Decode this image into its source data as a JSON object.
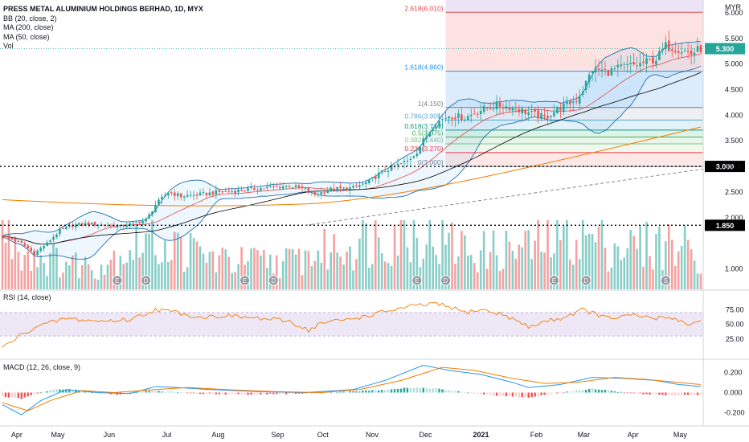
{
  "chart_data": {
    "type": "candlestick",
    "title": "PRESS METAL ALUMINIUM HOLDINGS BERHAD, 1D, MYX",
    "currency": "MYR",
    "colors": {
      "up": "#26a69a",
      "down": "#ef5350",
      "bb": "#1e6fae",
      "ma200": "#f57c00",
      "ma50": "#000000",
      "rsi": "#f57c00",
      "macd": "#2196f3",
      "signal": "#f57c00"
    },
    "indicators": [
      "BB (20, close, 2)",
      "MA (200, close)",
      "MA (50, close)",
      "Vol"
    ],
    "x_labels": [
      "Apr",
      "May",
      "Jun",
      "Jul",
      "Aug",
      "Sep",
      "Oct",
      "Nov",
      "Dec",
      "2021",
      "Feb",
      "Mar",
      "Apr",
      "May"
    ],
    "price_axis": {
      "ticks": [
        "6.000",
        "5.500",
        "5.000",
        "4.500",
        "4.000",
        "3.500",
        "3.000",
        "2.500",
        "2.000",
        "1.000"
      ],
      "range": [
        0.6,
        6.25
      ]
    },
    "price_path": [
      [
        0,
        1.65
      ],
      [
        6,
        1.5
      ],
      [
        10,
        1.3
      ],
      [
        14,
        1.5
      ],
      [
        18,
        1.75
      ],
      [
        22,
        1.85
      ],
      [
        27,
        1.88
      ],
      [
        33,
        1.85
      ],
      [
        37,
        1.83
      ],
      [
        40,
        1.87
      ],
      [
        45,
        1.95
      ],
      [
        48,
        2.25
      ],
      [
        52,
        2.5
      ],
      [
        56,
        2.42
      ],
      [
        62,
        2.45
      ],
      [
        68,
        2.5
      ],
      [
        73,
        2.52
      ],
      [
        78,
        2.55
      ],
      [
        85,
        2.6
      ],
      [
        90,
        2.62
      ],
      [
        95,
        2.55
      ],
      [
        98,
        2.45
      ],
      [
        103,
        2.55
      ],
      [
        110,
        2.58
      ],
      [
        115,
        2.7
      ],
      [
        118,
        2.85
      ],
      [
        122,
        2.98
      ],
      [
        127,
        3.1
      ],
      [
        130,
        3.3
      ],
      [
        135,
        3.8
      ],
      [
        140,
        4.0
      ],
      [
        145,
        3.95
      ],
      [
        150,
        4.1
      ],
      [
        155,
        4.2
      ],
      [
        160,
        4.15
      ],
      [
        165,
        4.05
      ],
      [
        170,
        3.95
      ],
      [
        175,
        4.15
      ],
      [
        180,
        4.3
      ],
      [
        182,
        4.5
      ],
      [
        185,
        4.9
      ],
      [
        190,
        4.85
      ],
      [
        195,
        4.95
      ],
      [
        200,
        5.0
      ],
      [
        205,
        5.1
      ],
      [
        208,
        5.35
      ],
      [
        212,
        5.3
      ],
      [
        216,
        5.2
      ],
      [
        219,
        5.3
      ]
    ],
    "fibonacci": [
      {
        "label": "2.618(6.010)",
        "value": 6.01,
        "color": "#e5474e"
      },
      {
        "label": "1.618(4.860)",
        "value": 4.86,
        "color": "#2196f3"
      },
      {
        "label": "1(4.150)",
        "value": 4.15,
        "color": "#787b86"
      },
      {
        "label": "0.786(3.905)",
        "value": 3.905,
        "color": "#5fa8d3"
      },
      {
        "label": "0.618(3.710)",
        "value": 3.71,
        "color": "#089981"
      },
      {
        "label": "0.5(3.575)",
        "value": 3.575,
        "color": "#4caf50"
      },
      {
        "label": "0.382(3.440)",
        "value": 3.44,
        "color": "#81c784"
      },
      {
        "label": "0.236(3.270)",
        "value": 3.27,
        "color": "#f23645"
      },
      {
        "label": "0(3.000)",
        "value": 3.0,
        "color": "#787b86"
      }
    ],
    "horizontal_levels": [
      {
        "label": "3.000",
        "value": 3.0
      },
      {
        "label": "1.850",
        "value": 1.85
      }
    ],
    "last_price": {
      "label": "5.300",
      "value": 5.3
    },
    "events": [
      "E",
      "D",
      "E",
      "D",
      "E",
      "D",
      "E",
      "D",
      "S"
    ],
    "rsi": {
      "label": "RSI (14, close)",
      "ticks": [
        "75.00",
        "50.00",
        "25.00"
      ],
      "upper": 70,
      "lower": 30,
      "last": 55,
      "path": [
        [
          0,
          10
        ],
        [
          4,
          25
        ],
        [
          10,
          45
        ],
        [
          20,
          60
        ],
        [
          30,
          55
        ],
        [
          40,
          58
        ],
        [
          48,
          75
        ],
        [
          55,
          70
        ],
        [
          62,
          62
        ],
        [
          70,
          65
        ],
        [
          80,
          60
        ],
        [
          90,
          55
        ],
        [
          96,
          40
        ],
        [
          100,
          52
        ],
        [
          108,
          58
        ],
        [
          115,
          65
        ],
        [
          120,
          72
        ],
        [
          128,
          80
        ],
        [
          135,
          85
        ],
        [
          140,
          80
        ],
        [
          145,
          70
        ],
        [
          150,
          75
        ],
        [
          158,
          65
        ],
        [
          165,
          45
        ],
        [
          170,
          55
        ],
        [
          175,
          60
        ],
        [
          182,
          75
        ],
        [
          190,
          60
        ],
        [
          198,
          65
        ],
        [
          205,
          60
        ],
        [
          210,
          62
        ],
        [
          215,
          50
        ],
        [
          219,
          55
        ]
      ]
    },
    "macd": {
      "label": "MACD (12, 26, close, 9)",
      "ticks": [
        "0.200",
        "0.000",
        "-0.200"
      ],
      "macd_path": [
        [
          0,
          -0.12
        ],
        [
          6,
          -0.22
        ],
        [
          12,
          -0.08
        ],
        [
          20,
          0.03
        ],
        [
          30,
          0.0
        ],
        [
          40,
          -0.01
        ],
        [
          48,
          0.06
        ],
        [
          55,
          0.05
        ],
        [
          65,
          0.03
        ],
        [
          80,
          0.01
        ],
        [
          95,
          0.0
        ],
        [
          110,
          0.03
        ],
        [
          120,
          0.12
        ],
        [
          132,
          0.27
        ],
        [
          140,
          0.22
        ],
        [
          150,
          0.18
        ],
        [
          160,
          0.1
        ],
        [
          165,
          0.05
        ],
        [
          175,
          0.08
        ],
        [
          185,
          0.15
        ],
        [
          195,
          0.14
        ],
        [
          205,
          0.12
        ],
        [
          212,
          0.08
        ],
        [
          219,
          0.06
        ]
      ],
      "signal_path": [
        [
          0,
          -0.1
        ],
        [
          8,
          -0.18
        ],
        [
          15,
          -0.08
        ],
        [
          25,
          0.02
        ],
        [
          35,
          0.0
        ],
        [
          48,
          0.03
        ],
        [
          58,
          0.05
        ],
        [
          70,
          0.03
        ],
        [
          85,
          0.01
        ],
        [
          100,
          0.0
        ],
        [
          112,
          0.03
        ],
        [
          125,
          0.12
        ],
        [
          138,
          0.25
        ],
        [
          148,
          0.22
        ],
        [
          160,
          0.14
        ],
        [
          170,
          0.09
        ],
        [
          180,
          0.1
        ],
        [
          192,
          0.15
        ],
        [
          202,
          0.13
        ],
        [
          212,
          0.1
        ],
        [
          219,
          0.08
        ]
      ],
      "hist_path": [
        [
          0,
          -0.04
        ],
        [
          6,
          -0.06
        ],
        [
          12,
          0.0
        ],
        [
          16,
          0.03
        ],
        [
          22,
          0.03
        ],
        [
          28,
          0.0
        ],
        [
          36,
          -0.02
        ],
        [
          45,
          0.02
        ],
        [
          52,
          0.01
        ],
        [
          60,
          -0.01
        ],
        [
          75,
          -0.02
        ],
        [
          95,
          -0.01
        ],
        [
          110,
          0.01
        ],
        [
          120,
          0.03
        ],
        [
          128,
          0.05
        ],
        [
          136,
          0.04
        ],
        [
          145,
          0.0
        ],
        [
          155,
          -0.03
        ],
        [
          165,
          -0.05
        ],
        [
          175,
          0.0
        ],
        [
          185,
          0.04
        ],
        [
          195,
          0.0
        ],
        [
          205,
          -0.02
        ],
        [
          212,
          -0.03
        ],
        [
          219,
          -0.02
        ]
      ]
    },
    "volume_profile": [
      [
        0,
        1.3
      ],
      [
        8,
        0.8
      ],
      [
        18,
        0.6
      ],
      [
        30,
        0.5
      ],
      [
        45,
        1.1
      ],
      [
        55,
        0.9
      ],
      [
        70,
        0.6
      ],
      [
        90,
        0.6
      ],
      [
        110,
        1.0
      ],
      [
        125,
        1.3
      ],
      [
        135,
        1.1
      ],
      [
        150,
        0.8
      ],
      [
        165,
        0.9
      ],
      [
        180,
        1.2
      ],
      [
        195,
        0.9
      ],
      [
        210,
        1.0
      ],
      [
        219,
        0.8
      ]
    ]
  }
}
